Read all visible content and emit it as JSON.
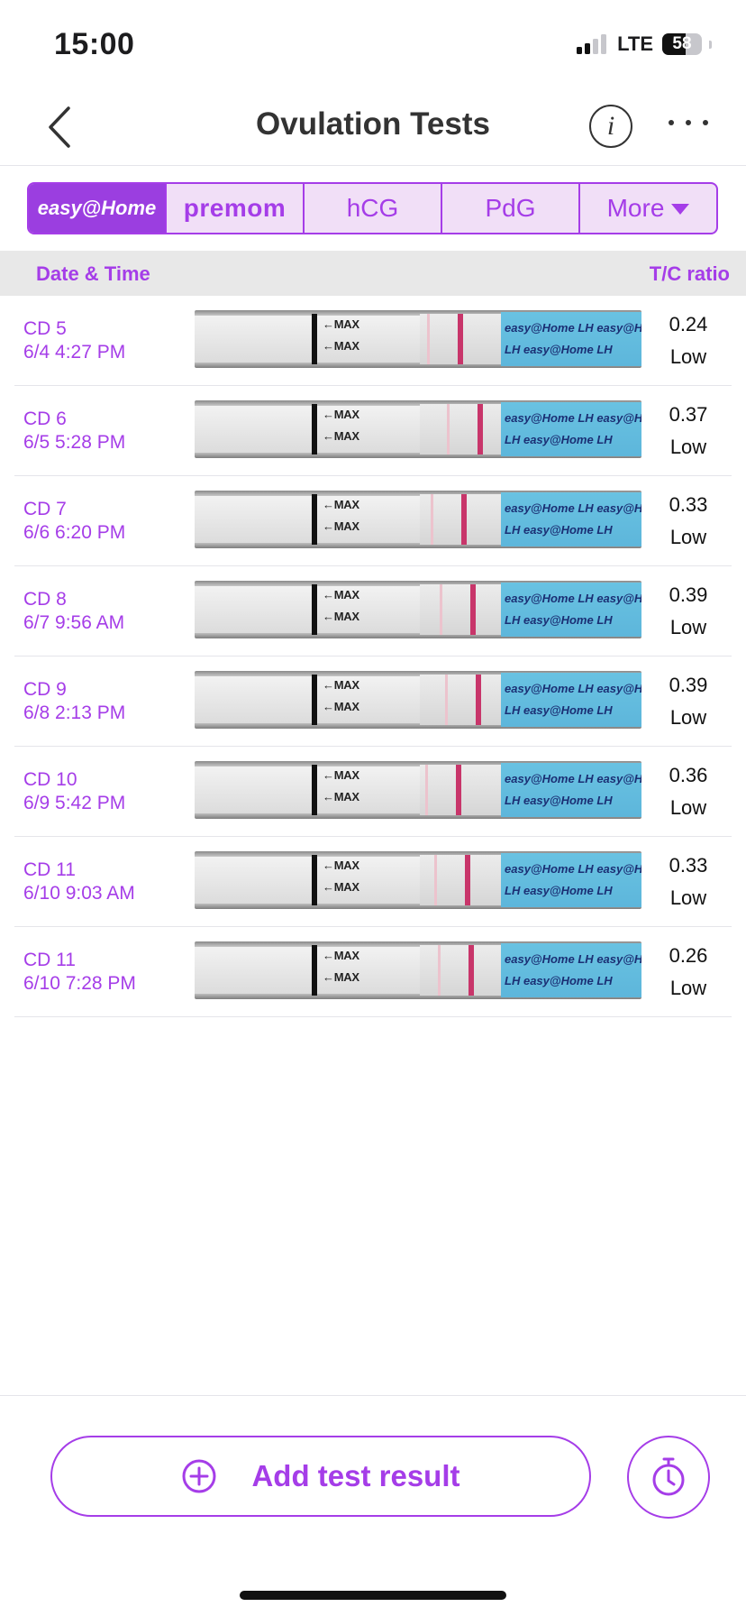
{
  "status_bar": {
    "time": "15:00",
    "network": "LTE",
    "battery": "58",
    "battery_level": 0.58
  },
  "nav": {
    "title": "Ovulation Tests",
    "info_glyph": "i"
  },
  "tabs": {
    "brand1": "easy@Home",
    "brand2": "premom",
    "hcg": "hCG",
    "pdg": "PdG",
    "more": "More"
  },
  "table": {
    "header_left": "Date & Time",
    "header_right": "T/C ratio",
    "strip_text": {
      "max": "←MAX",
      "brand": "easy@Home",
      "lh": "LH"
    },
    "rows": [
      {
        "cd": "CD 5",
        "datetime": "6/4 4:27 PM",
        "ratio": "0.24",
        "level": "Low"
      },
      {
        "cd": "CD 6",
        "datetime": "6/5 5:28 PM",
        "ratio": "0.37",
        "level": "Low"
      },
      {
        "cd": "CD 7",
        "datetime": "6/6 6:20 PM",
        "ratio": "0.33",
        "level": "Low"
      },
      {
        "cd": "CD 8",
        "datetime": "6/7 9:56 AM",
        "ratio": "0.39",
        "level": "Low"
      },
      {
        "cd": "CD 9",
        "datetime": "6/8 2:13 PM",
        "ratio": "0.39",
        "level": "Low"
      },
      {
        "cd": "CD 10",
        "datetime": "6/9 5:42 PM",
        "ratio": "0.36",
        "level": "Low"
      },
      {
        "cd": "CD 11",
        "datetime": "6/10 9:03 AM",
        "ratio": "0.33",
        "level": "Low"
      },
      {
        "cd": "CD 11",
        "datetime": "6/10 7:28 PM",
        "ratio": "0.26",
        "level": "Low"
      }
    ]
  },
  "actions": {
    "add_label": "Add test result"
  },
  "colors": {
    "accent": "#a53de8",
    "tab_bg": "#f1dff7",
    "control_line": "#c8356a"
  },
  "icons": [
    "back-chevron-icon",
    "info-icon",
    "more-dots-icon",
    "plus-circle-icon",
    "stopwatch-icon"
  ]
}
